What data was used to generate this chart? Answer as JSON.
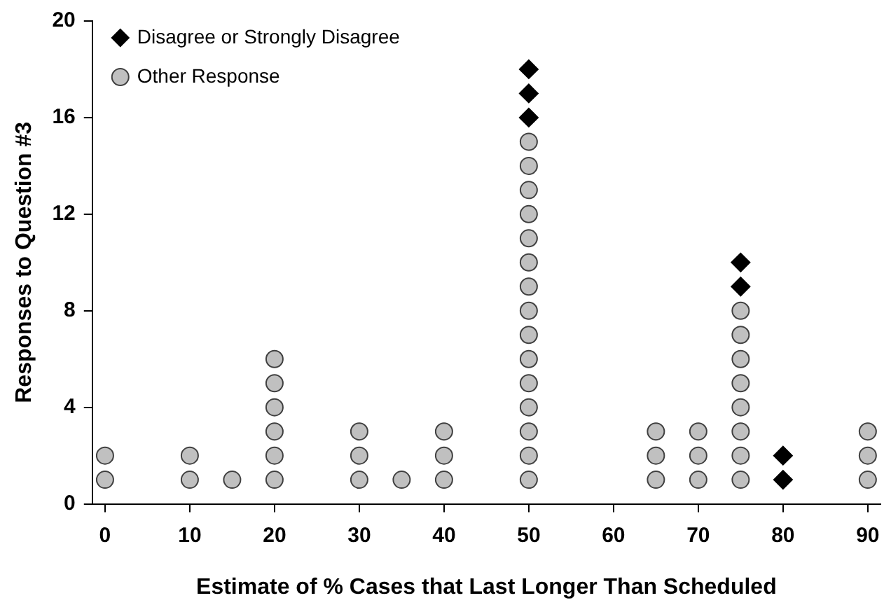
{
  "chart_data": {
    "type": "scatter",
    "xlabel": "Estimate of % Cases that Last Longer Than Scheduled",
    "ylabel": "Responses to Question #3",
    "xlim": [
      -1.5,
      91.5
    ],
    "xticks": [
      0,
      10,
      20,
      30,
      40,
      50,
      60,
      70,
      80,
      90
    ],
    "ylim": [
      0,
      20
    ],
    "yticks": [
      0,
      4,
      8,
      12,
      16,
      20
    ],
    "grid": false,
    "legend": "top left",
    "series": [
      {
        "name": "Disagree or Strongly Disagree",
        "color": "#000000",
        "marker": "diamond",
        "x": [
          50,
          50,
          50,
          75,
          75,
          80,
          80
        ],
        "values": [
          16,
          17,
          18,
          9,
          10,
          1,
          2
        ]
      },
      {
        "name": "Other Response",
        "color": "#c0c0c0",
        "marker": "circle",
        "x": [
          0,
          0,
          10,
          10,
          15,
          20,
          20,
          20,
          20,
          20,
          20,
          30,
          30,
          30,
          35,
          40,
          40,
          40,
          50,
          50,
          50,
          50,
          50,
          50,
          50,
          50,
          50,
          50,
          50,
          50,
          50,
          50,
          50,
          65,
          65,
          65,
          70,
          70,
          70,
          75,
          75,
          75,
          75,
          75,
          75,
          75,
          75,
          90,
          90,
          90
        ],
        "values": [
          1,
          2,
          1,
          2,
          1,
          1,
          2,
          3,
          4,
          5,
          6,
          1,
          2,
          3,
          1,
          1,
          2,
          3,
          1,
          2,
          3,
          4,
          5,
          6,
          7,
          8,
          9,
          10,
          11,
          12,
          13,
          14,
          15,
          1,
          2,
          3,
          1,
          2,
          3,
          1,
          2,
          3,
          4,
          5,
          6,
          7,
          8,
          1,
          2,
          3
        ]
      }
    ]
  }
}
